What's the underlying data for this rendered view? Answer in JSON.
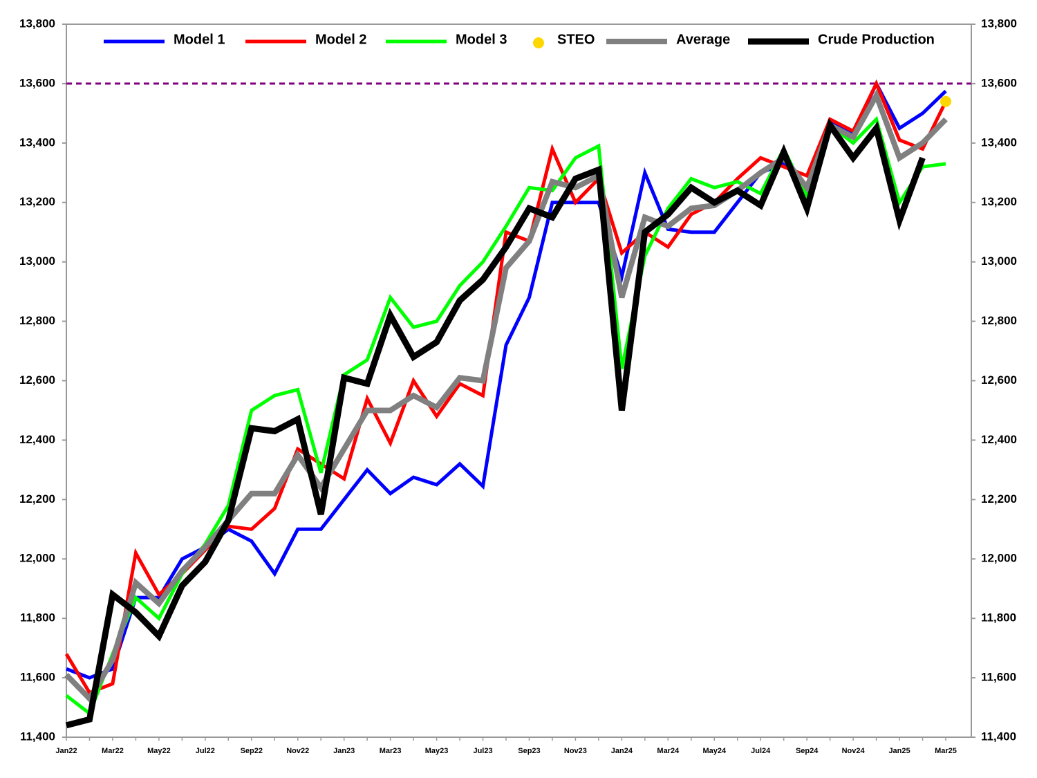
{
  "chart_data": {
    "type": "line",
    "categories": [
      "Jan22",
      null,
      "Mar22",
      null,
      "May22",
      null,
      "Jul22",
      null,
      "Sep22",
      null,
      "Nov22",
      null,
      "Jan23",
      null,
      "Mar23",
      null,
      "May23",
      null,
      "Jul23",
      null,
      "Sep23",
      null,
      "Nov23",
      null,
      "Jan24",
      null,
      "Mar24",
      null,
      "May24",
      null,
      "Jul24",
      null,
      "Sep24",
      null,
      "Nov24",
      null,
      "Jan25",
      null,
      "Mar25"
    ],
    "series": [
      {
        "name": "Model 1",
        "color": "#0000ff",
        "style": "line",
        "values": [
          11630,
          11600,
          11630,
          11870,
          11870,
          12000,
          12040,
          12100,
          12060,
          11950,
          12100,
          12100,
          12200,
          12300,
          12220,
          12275,
          12250,
          12320,
          12245,
          12720,
          12880,
          13200,
          13200,
          13200,
          12950,
          13300,
          13110,
          13100,
          13100,
          13200,
          13300,
          13330,
          13250,
          13470,
          13430,
          13600,
          13450,
          13500,
          13575
        ]
      },
      {
        "name": "Model 2",
        "color": "#ff0000",
        "style": "line",
        "values": [
          11680,
          11550,
          11580,
          12020,
          11880,
          11950,
          12030,
          12110,
          12100,
          12170,
          12370,
          12320,
          12270,
          12540,
          12390,
          12600,
          12480,
          12590,
          12550,
          13100,
          13070,
          13380,
          13200,
          13280,
          13030,
          13100,
          13050,
          13160,
          13200,
          13280,
          13350,
          13320,
          13290,
          13480,
          13440,
          13600,
          13410,
          13380,
          13540
        ]
      },
      {
        "name": "Model  3",
        "color": "#00ff00",
        "style": "line",
        "values": [
          11540,
          11480,
          11680,
          11870,
          11800,
          11950,
          12050,
          12180,
          12500,
          12550,
          12570,
          12290,
          12620,
          12670,
          12880,
          12780,
          12800,
          12920,
          13000,
          13120,
          13250,
          13240,
          13350,
          13390,
          12640,
          13020,
          13180,
          13280,
          13250,
          13270,
          13230,
          13380,
          13220,
          13460,
          13400,
          13480,
          13200,
          13320,
          13330
        ]
      },
      {
        "name": "STEO",
        "color": "#ffd700",
        "style": "marker",
        "values": [
          null,
          null,
          null,
          null,
          null,
          null,
          null,
          null,
          null,
          null,
          null,
          null,
          null,
          null,
          null,
          null,
          null,
          null,
          null,
          null,
          null,
          null,
          null,
          null,
          null,
          null,
          null,
          null,
          null,
          null,
          null,
          null,
          null,
          null,
          null,
          null,
          null,
          null,
          13540
        ]
      },
      {
        "name": "Average",
        "color": "#808080",
        "style": "line",
        "values": [
          11610,
          11530,
          11660,
          11920,
          11850,
          11960,
          12040,
          12130,
          12220,
          12220,
          12350,
          12240,
          12370,
          12500,
          12500,
          12550,
          12510,
          12610,
          12600,
          12980,
          13070,
          13270,
          13250,
          13290,
          12880,
          13150,
          13120,
          13180,
          13190,
          13240,
          13300,
          13350,
          13250,
          13460,
          13420,
          13560,
          13350,
          13400,
          13480
        ]
      },
      {
        "name": "Crude Production",
        "color": "#000000",
        "style": "line",
        "values": [
          11440,
          11460,
          11880,
          11820,
          11740,
          11910,
          11990,
          12130,
          12440,
          12430,
          12470,
          12150,
          12610,
          12590,
          12820,
          12680,
          12730,
          12870,
          12940,
          13050,
          13180,
          13150,
          13280,
          13310,
          12500,
          13100,
          13160,
          13250,
          13200,
          13240,
          13190,
          13370,
          13180,
          13460,
          13350,
          13450,
          13140,
          13350,
          null
        ]
      }
    ],
    "ylim": [
      11400,
      13800
    ],
    "yticks": [
      {
        "value": 11400,
        "label": "11,400"
      },
      {
        "value": 11600,
        "label": "11,600"
      },
      {
        "value": 11800,
        "label": "11,800"
      },
      {
        "value": 12000,
        "label": "12,000"
      },
      {
        "value": 12200,
        "label": "12,200"
      },
      {
        "value": 12400,
        "label": "12,400"
      },
      {
        "value": 12600,
        "label": "12,600"
      },
      {
        "value": 12800,
        "label": "12,800"
      },
      {
        "value": 13000,
        "label": "13,000"
      },
      {
        "value": 13200,
        "label": "13,200"
      },
      {
        "value": 13400,
        "label": "13,400"
      },
      {
        "value": 13600,
        "label": "13,600"
      },
      {
        "value": 13800,
        "label": "13,800"
      }
    ],
    "y2lim": [
      11400,
      13800
    ],
    "y2ticks": [
      {
        "value": 11400,
        "label": "11,400"
      },
      {
        "value": 11600,
        "label": "11,600"
      },
      {
        "value": 11800,
        "label": "11,800"
      },
      {
        "value": 12000,
        "label": "12,000"
      },
      {
        "value": 12200,
        "label": "12,200"
      },
      {
        "value": 12400,
        "label": "12,400"
      },
      {
        "value": 12600,
        "label": "12,600"
      },
      {
        "value": 12800,
        "label": "12,800"
      },
      {
        "value": 13000,
        "label": "13,000"
      },
      {
        "value": 13200,
        "label": "13,200"
      },
      {
        "value": 13400,
        "label": "13,400"
      },
      {
        "value": 13600,
        "label": "13,600"
      },
      {
        "value": 13800,
        "label": "13,800"
      }
    ],
    "reference_line": {
      "value": 13600,
      "color": "#800080",
      "dash": true
    },
    "grid": false,
    "legend": "top"
  }
}
